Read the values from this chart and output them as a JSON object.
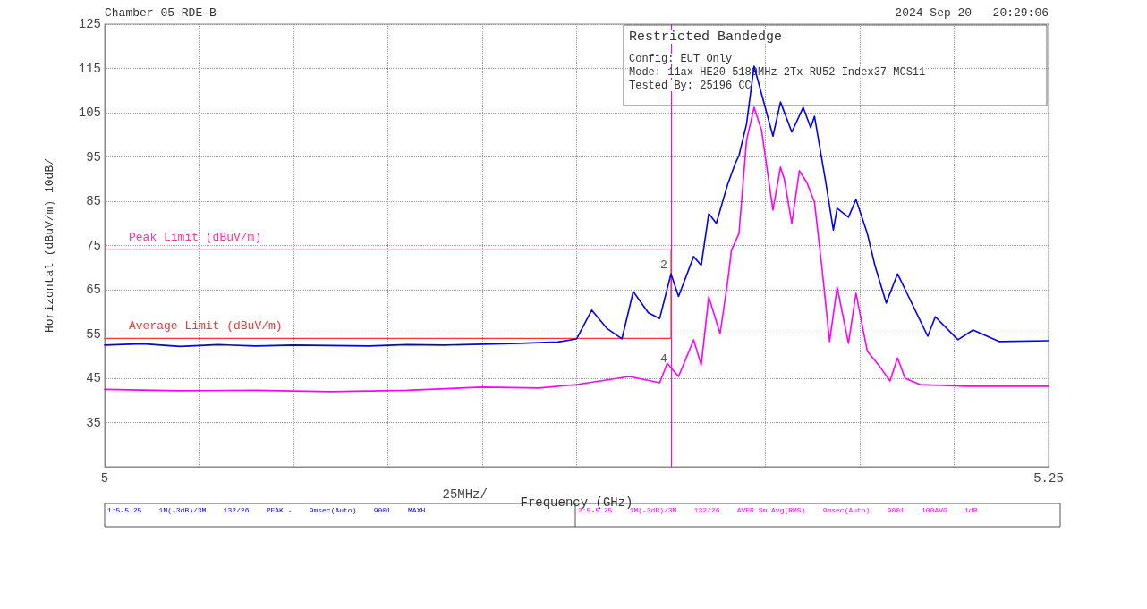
{
  "chart_data": {
    "type": "line",
    "title": "Chamber 05-RDE-B",
    "subtitle": "Restricted Bandedge",
    "xlabel": "Frequency (GHz)",
    "ylabel": "Horizontal (dBuV/m) 10dB/",
    "annotations": [
      "2024 Sep 20   20:29:06",
      "Config: EUT Only",
      "Mode: 11ax HE20 5180MHz 2Tx RU52 Index37 MCS11",
      "Tested By: 25196 CC",
      "25MHz/",
      "1:5-5.25    1M(-3dB)/3M    132/26    PEAK -    9msec(Auto)    9001    MAXH",
      "2:5-5.25    1M(-3dB)/3M    132/26    AVER Sm Avg(RMS)    9msec(Auto)    9001    100AVG    1dB",
      {
        "text": "2",
        "x": 5.15,
        "y": 68.6
      },
      {
        "text": "4",
        "x": 5.15,
        "y": 47.5
      }
    ],
    "series": [
      {
        "color": "#0000ff",
        "x": [
          5.0,
          5.01,
          5.02,
          5.03,
          5.04,
          5.05,
          5.06,
          5.07,
          5.08,
          5.09,
          5.1,
          5.11,
          5.12,
          5.125,
          5.129,
          5.133,
          5.137,
          5.14,
          5.144,
          5.147,
          5.15,
          5.152,
          5.156,
          5.158,
          5.16,
          5.162,
          5.165,
          5.167,
          5.168,
          5.17,
          5.172,
          5.177,
          5.179,
          5.182,
          5.185,
          5.187,
          5.188,
          5.191,
          5.193,
          5.194,
          5.197,
          5.199,
          5.202,
          5.204,
          5.207,
          5.21,
          5.218,
          5.22,
          5.226,
          5.23,
          5.237,
          5.25
        ],
        "values": [
          52.5,
          52.8,
          52.2,
          52.6,
          52.3,
          52.5,
          52.4,
          52.3,
          52.6,
          52.5,
          52.7,
          52.9,
          53.2,
          53.9,
          60.4,
          56.3,
          53.9,
          64.6,
          59.8,
          58.5,
          68.6,
          63.5,
          72.5,
          70.5,
          82.2,
          80,
          88.8,
          93.5,
          95.3,
          102.4,
          115.5,
          99.7,
          107.4,
          100.6,
          106.2,
          101.6,
          104.2,
          89.2,
          78.5,
          83.4,
          81.4,
          85.4,
          77.7,
          70.5,
          62,
          68.6,
          54.5,
          58.9,
          53.7,
          55.9,
          53.3,
          53.5
        ]
      },
      {
        "color": "#ff00ff",
        "x": [
          5.0,
          5.02,
          5.04,
          5.06,
          5.08,
          5.1,
          5.115,
          5.125,
          5.139,
          5.147,
          5.149,
          5.152,
          5.156,
          5.158,
          5.16,
          5.163,
          5.165,
          5.166,
          5.168,
          5.17,
          5.172,
          5.174,
          5.177,
          5.179,
          5.18,
          5.182,
          5.184,
          5.186,
          5.188,
          5.19,
          5.192,
          5.194,
          5.197,
          5.199,
          5.202,
          5.205,
          5.208,
          5.21,
          5.212,
          5.216,
          5.228,
          5.25
        ],
        "values": [
          42.5,
          42.2,
          42.3,
          42.0,
          42.3,
          43.0,
          42.8,
          43.6,
          45.4,
          44,
          48.4,
          45.4,
          53.7,
          48,
          63.4,
          55.1,
          66.8,
          73.9,
          77.7,
          98.7,
          106.2,
          101,
          83,
          92.7,
          90,
          80,
          91.9,
          89.2,
          84.8,
          69.8,
          53.3,
          65.6,
          52.9,
          64.2,
          51.1,
          48,
          44.4,
          49.6,
          45,
          43.6,
          43.2,
          43.2
        ]
      },
      {
        "name": "Peak Limit (dBuV/m)",
        "color": "#ff3399",
        "x": [
          5.0,
          5.15
        ],
        "values": [
          74,
          74
        ]
      },
      {
        "name": "Average Limit (dBuV/m)",
        "color": "#ff3333",
        "x": [
          5.0,
          5.15,
          5.15
        ],
        "values": [
          54,
          54,
          74
        ]
      }
    ],
    "xlim": [
      5,
      5.25
    ],
    "xticks": [
      5,
      {
        "value": 5.025,
        "label": null
      },
      {
        "value": 5.05,
        "label": null
      },
      {
        "value": 5.075,
        "label": null
      },
      {
        "value": 5.1,
        "label": null
      },
      {
        "value": 5.125,
        "label": null
      },
      {
        "value": 5.15,
        "label": null
      },
      {
        "value": 5.175,
        "label": null
      },
      {
        "value": 5.2,
        "label": null
      },
      {
        "value": 5.225,
        "label": null
      },
      5.25
    ],
    "ylim": [
      25,
      125
    ],
    "yticks": [
      {
        "value": 25,
        "label": null
      },
      35,
      45,
      55,
      65,
      75,
      85,
      95,
      105,
      115,
      125
    ],
    "ref_lines": [
      {
        "axis": "x",
        "value": 5.15,
        "label": null,
        "color": "#ff00ff"
      }
    ],
    "grid": true,
    "legend": false,
    "marker": "none",
    "line_style": "solid"
  }
}
